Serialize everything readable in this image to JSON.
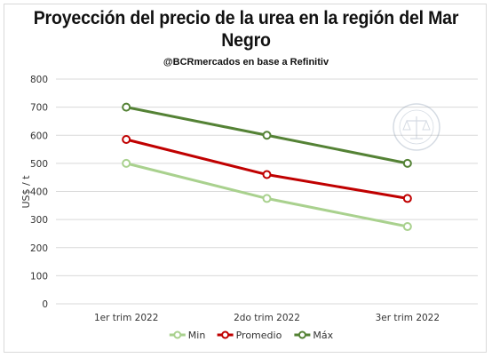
{
  "chart_data": {
    "type": "line",
    "title": "Proyección del precio de la urea en la región del Mar Negro",
    "subtitle": "@BCRmercados en base a Refinitiv",
    "xlabel": "",
    "ylabel": "US$ / t",
    "categories": [
      "1er trim 2022",
      "2do trim 2022",
      "3er trim 2022"
    ],
    "ylim": [
      0,
      800
    ],
    "yticks": [
      "0",
      "100",
      "200",
      "300",
      "400",
      "500",
      "600",
      "700",
      "800"
    ],
    "grid": true,
    "legend_position": "bottom",
    "series": [
      {
        "name": "Min",
        "values": [
          500,
          375,
          275
        ],
        "color": "#a9d18e"
      },
      {
        "name": "Promedio",
        "values": [
          585,
          460,
          375
        ],
        "color": "#c00000"
      },
      {
        "name": "Máx",
        "values": [
          700,
          600,
          500
        ],
        "color": "#548235"
      }
    ]
  },
  "watermark_icon": "bolsa-de-comercio-seal"
}
